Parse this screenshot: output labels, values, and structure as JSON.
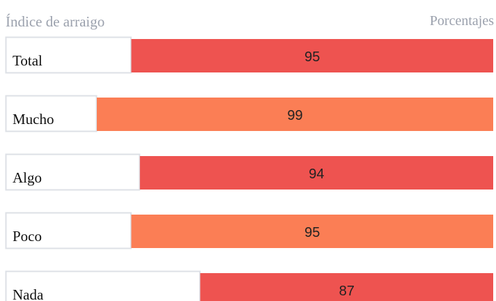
{
  "chart_data": {
    "type": "bar",
    "title": "Índice de arraigo",
    "subtitle": "Porcentajes",
    "categories": [
      "Total",
      "Mucho",
      "Algo",
      "Poco",
      "Nada"
    ],
    "values": [
      95,
      99,
      94,
      95,
      87
    ],
    "colors": [
      "#ee5350",
      "#fb7e55",
      "#ee5350",
      "#fb7e55",
      "#ee5350"
    ],
    "xlim": [
      53,
      99
    ]
  }
}
